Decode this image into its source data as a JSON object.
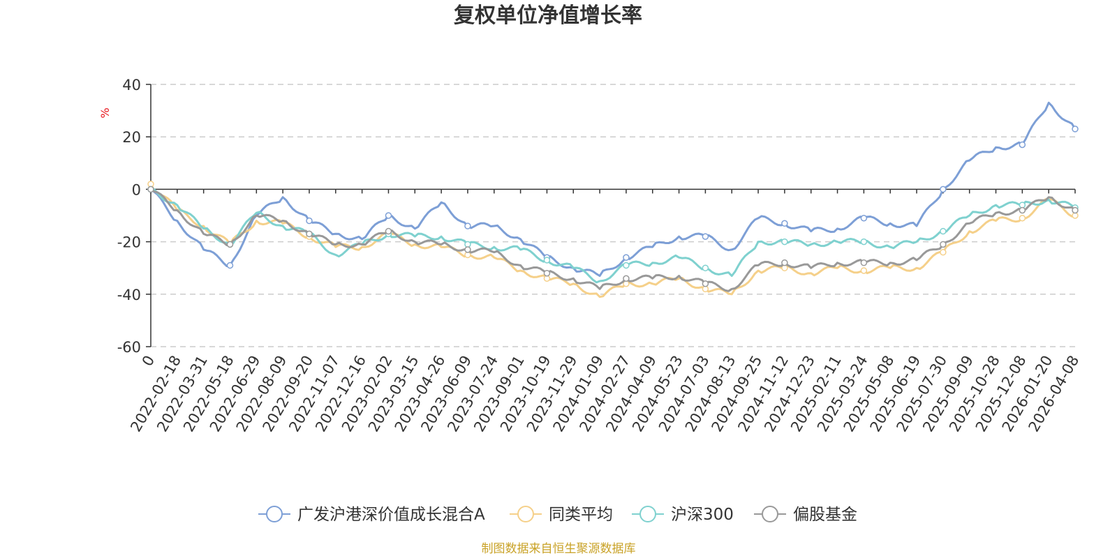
{
  "chart_data": {
    "type": "line",
    "title": "复权单位净值增长率",
    "ylabel": "%",
    "ylim": [
      -60,
      40
    ],
    "yticks": [
      40,
      20,
      0,
      -20,
      -40,
      -60
    ],
    "x_tick_labels": [
      "0",
      "2022-02-18",
      "2022-03-31",
      "2022-05-18",
      "2022-06-29",
      "2022-08-09",
      "2022-09-20",
      "2022-11-07",
      "2022-12-16",
      "2023-02-02",
      "2023-03-15",
      "2023-04-26",
      "2023-06-09",
      "2023-07-24",
      "2023-09-01",
      "2023-10-19",
      "2023-11-29",
      "2024-01-09",
      "2024-02-27",
      "2024-04-09",
      "2024-05-23",
      "2024-07-03",
      "2024-08-13",
      "2024-09-25",
      "2024-11-12",
      "2024-12-23",
      "2025-02-11",
      "2025-03-24",
      "2025-05-08",
      "2025-06-19",
      "2025-07-30",
      "2025-09-09",
      "2025-10-28",
      "2025-12-08",
      "2026-01-20",
      "2026-04-08"
    ],
    "series": [
      {
        "name": "广发沪港深价值成长混合A",
        "color": "#7d9fd6",
        "values": [
          0,
          -12,
          -23,
          -29,
          -10,
          -3,
          -12,
          -17,
          -19,
          -10,
          -15,
          -5,
          -14,
          -14,
          -19,
          -26,
          -30,
          -33,
          -26,
          -22,
          -18,
          -18,
          -23,
          -11,
          -13,
          -16,
          -15,
          -11,
          -13,
          -14,
          0,
          11,
          16,
          17,
          33,
          23
        ]
      },
      {
        "name": "同类平均",
        "color": "#f5d08a",
        "values": [
          2,
          -8,
          -14,
          -21,
          -12,
          -13,
          -18,
          -22,
          -22,
          -17,
          -21,
          -22,
          -25,
          -26,
          -31,
          -34,
          -36,
          -41,
          -36,
          -36,
          -34,
          -38,
          -40,
          -31,
          -30,
          -32,
          -30,
          -31,
          -30,
          -30,
          -24,
          -16,
          -12,
          -11,
          -4,
          -10
        ]
      },
      {
        "name": "沪深300",
        "color": "#7fd1cf",
        "values": [
          0,
          -6,
          -15,
          -21,
          -9,
          -14,
          -17,
          -25,
          -21,
          -17,
          -18,
          -18,
          -21,
          -22,
          -23,
          -27,
          -30,
          -35,
          -29,
          -28,
          -26,
          -30,
          -33,
          -20,
          -20,
          -21,
          -20,
          -20,
          -22,
          -20,
          -16,
          -10,
          -6,
          -6,
          -4,
          -7
        ]
      },
      {
        "name": "偏股基金",
        "color": "#999999",
        "values": [
          0,
          -8,
          -17,
          -21,
          -10,
          -12,
          -17,
          -21,
          -21,
          -16,
          -20,
          -21,
          -23,
          -24,
          -29,
          -32,
          -34,
          -38,
          -34,
          -34,
          -33,
          -36,
          -38,
          -29,
          -28,
          -30,
          -28,
          -28,
          -28,
          -27,
          -21,
          -13,
          -9,
          -8,
          -3,
          -8
        ]
      }
    ],
    "legend_position": "bottom-center"
  },
  "source_note": "制图数据来自恒生聚源数据库"
}
